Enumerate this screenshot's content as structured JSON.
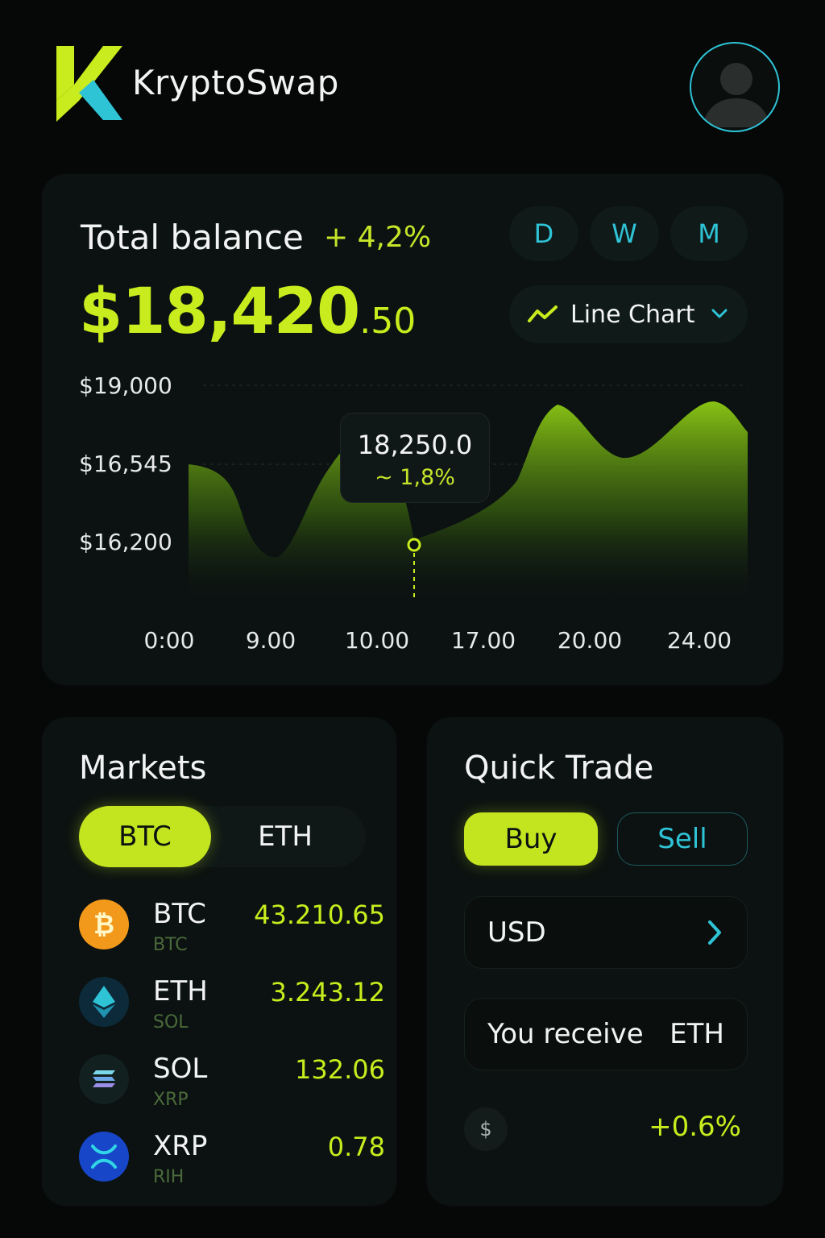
{
  "header": {
    "app_name": "KryptoSwap"
  },
  "balance": {
    "title": "Total balance",
    "change": "+ 4,2%",
    "amount_main": "$18,420",
    "amount_cents": ".50",
    "periods": [
      "D",
      "W",
      "M"
    ],
    "chart_type_label": "Line Chart",
    "tooltip_value": "18,250.0",
    "tooltip_change": "1,8%"
  },
  "chart_data": {
    "type": "area",
    "y_tick_labels": [
      "$19,000",
      "$16,545",
      "$16,200"
    ],
    "x_tick_labels": [
      "0:00",
      "9.00",
      "10.00",
      "17.00",
      "20.00",
      "24.00"
    ],
    "accent_color": "#c8ec1d",
    "series_shape": "rises from start, dips low, climbs to peak, dips, second peak near end",
    "highlighted_point": {
      "value": "18,250.0",
      "change": "1,8%"
    }
  },
  "markets": {
    "title": "Markets",
    "tabs": [
      "BTC",
      "ETH"
    ],
    "active_tab": "BTC",
    "coins": [
      {
        "name": "BTC",
        "sub": "BTC",
        "price": "43.210.65",
        "icon": "bitcoin-icon"
      },
      {
        "name": "ETH",
        "sub": "SOL",
        "price": "3.243.12",
        "icon": "ethereum-icon"
      },
      {
        "name": "SOL",
        "sub": "XRP",
        "price": "132.06",
        "icon": "solana-icon"
      },
      {
        "name": "XRP",
        "sub": "RIH",
        "price": "0.78",
        "icon": "xrp-icon"
      }
    ]
  },
  "trade": {
    "title": "Quick Trade",
    "buy_label": "Buy",
    "sell_label": "Sell",
    "currency": "USD",
    "receive_label": "You receive",
    "receive_currency": "ETH",
    "dollar_symbol": "$",
    "change": "+0.6%"
  },
  "colors": {
    "accent_lime": "#c8ec1d",
    "accent_cyan": "#2fc3d6",
    "background": "#050807",
    "card": "#0b1211"
  }
}
